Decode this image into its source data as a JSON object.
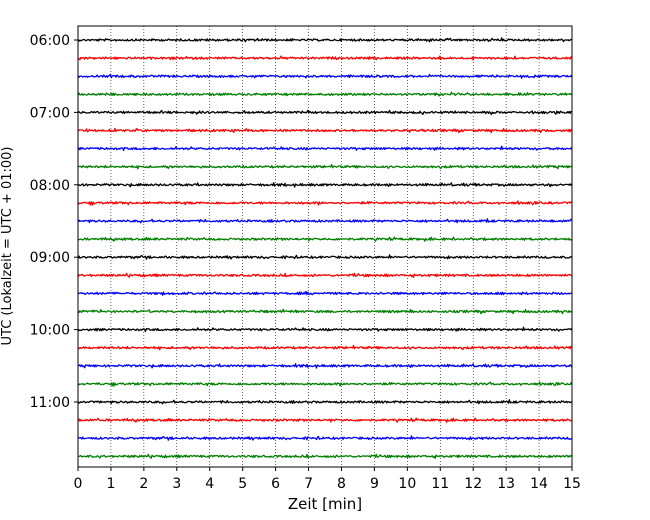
{
  "chart_data": {
    "type": "line",
    "xlabel": "Zeit  [min]",
    "ylabel": "UTC (Lokalzeit = UTC + 01:00)",
    "xlim": [
      0,
      15
    ],
    "x_ticks": [
      "0",
      "1",
      "2",
      "3",
      "4",
      "5",
      "6",
      "7",
      "8",
      "9",
      "10",
      "11",
      "12",
      "13",
      "14",
      "15"
    ],
    "y_ticks": [
      "06:00",
      "07:00",
      "08:00",
      "09:00",
      "10:00",
      "11:00"
    ],
    "grid": "vertical dotted",
    "trace_interval_min": 15,
    "trace_colors": [
      "#000000",
      "#ff0000",
      "#0000ff",
      "#007f00"
    ],
    "traces": [
      {
        "start": "06:00"
      },
      {
        "start": "06:15"
      },
      {
        "start": "06:30"
      },
      {
        "start": "06:45"
      },
      {
        "start": "07:00"
      },
      {
        "start": "07:15"
      },
      {
        "start": "07:30"
      },
      {
        "start": "07:45"
      },
      {
        "start": "08:00"
      },
      {
        "start": "08:15"
      },
      {
        "start": "08:30"
      },
      {
        "start": "08:45"
      },
      {
        "start": "09:00"
      },
      {
        "start": "09:15"
      },
      {
        "start": "09:30"
      },
      {
        "start": "09:45"
      },
      {
        "start": "10:00"
      },
      {
        "start": "10:15"
      },
      {
        "start": "10:30"
      },
      {
        "start": "10:45"
      },
      {
        "start": "11:00"
      },
      {
        "start": "11:15"
      },
      {
        "start": "11:30"
      },
      {
        "start": "11:45"
      }
    ]
  }
}
